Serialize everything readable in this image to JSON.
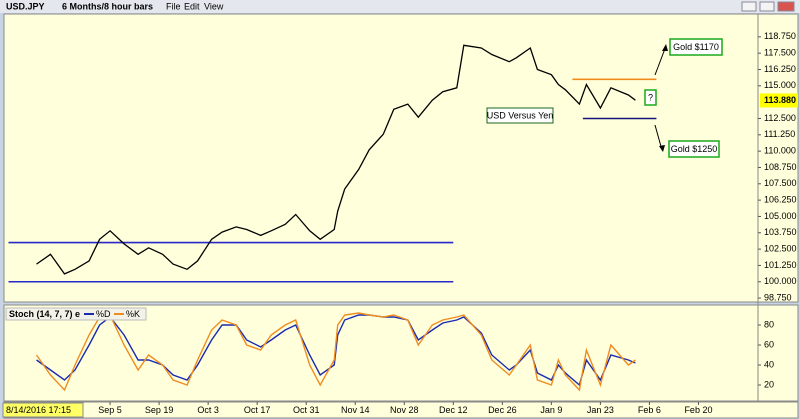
{
  "window": {
    "symbol": "USD.JPY",
    "period": "6 Months/8 hour bars",
    "menus": [
      "File",
      "Edit",
      "View"
    ],
    "cursor_date": "8/14/2016 17:15"
  },
  "chart_data": [
    {
      "type": "line",
      "x": [
        "2016-08-15",
        "2016-08-19",
        "2016-08-23",
        "2016-08-26",
        "2016-08-30",
        "2016-09-02",
        "2016-09-05",
        "2016-09-09",
        "2016-09-13",
        "2016-09-16",
        "2016-09-20",
        "2016-09-23",
        "2016-09-27",
        "2016-09-30",
        "2016-10-04",
        "2016-10-07",
        "2016-10-11",
        "2016-10-14",
        "2016-10-18",
        "2016-10-21",
        "2016-10-25",
        "2016-10-28",
        "2016-11-01",
        "2016-11-04",
        "2016-11-08",
        "2016-11-09",
        "2016-11-11",
        "2016-11-15",
        "2016-11-18",
        "2016-11-22",
        "2016-11-25",
        "2016-11-29",
        "2016-12-02",
        "2016-12-06",
        "2016-12-09",
        "2016-12-13",
        "2016-12-15",
        "2016-12-20",
        "2016-12-23",
        "2016-12-28",
        "2016-12-30",
        "2017-01-03",
        "2017-01-05",
        "2017-01-09",
        "2017-01-11",
        "2017-01-13",
        "2017-01-17",
        "2017-01-19",
        "2017-01-23",
        "2017-01-26",
        "2017-01-31",
        "2017-02-02"
      ],
      "series": [
        {
          "color": "#000000",
          "values": [
            101.35,
            102.1,
            100.6,
            100.95,
            101.6,
            103.25,
            103.9,
            102.9,
            102.1,
            102.6,
            102.1,
            101.35,
            100.95,
            101.6,
            103.25,
            103.8,
            104.2,
            104.0,
            103.55,
            103.9,
            104.4,
            105.15,
            103.9,
            103.25,
            104.0,
            105.4,
            107.1,
            108.6,
            110.1,
            111.3,
            113.2,
            113.6,
            112.6,
            113.9,
            114.55,
            114.85,
            118.1,
            117.9,
            117.4,
            116.85,
            117.15,
            117.9,
            116.25,
            115.85,
            115.1,
            114.7,
            113.6,
            115.1,
            113.3,
            114.85,
            114.3,
            113.9
          ]
        }
      ],
      "last": {
        "value": 113.88,
        "label": "113.880"
      },
      "lines": [
        {
          "value": 103.0,
          "x": [
            "2016-08-07",
            "2016-12-12"
          ],
          "color": "#2828c8"
        },
        {
          "value": 100.0,
          "x": [
            "2016-08-07",
            "2016-12-12"
          ],
          "color": "#2828c8"
        },
        {
          "value": 115.5,
          "x": [
            "2017-01-15",
            "2017-02-08"
          ],
          "color": "#f08c1e"
        },
        {
          "value": 112.5,
          "x": [
            "2017-01-18",
            "2017-02-08"
          ],
          "color": "#141478"
        }
      ],
      "annotations": [
        "USD Versus Yen",
        "?",
        "Gold $1170",
        "Gold $1250"
      ],
      "xlim": [
        "2016-08-06",
        "2017-03-09"
      ],
      "ylim": [
        98.45,
        120.5
      ],
      "yticks": [
        {
          "value": 98.75,
          "label": "98.750"
        },
        {
          "value": 100,
          "label": "100.000"
        },
        {
          "value": 101.25,
          "label": "101.250"
        },
        {
          "value": 102.5,
          "label": "102.500"
        },
        {
          "value": 103.75,
          "label": "103.750"
        },
        {
          "value": 105,
          "label": "105.000"
        },
        {
          "value": 106.25,
          "label": "106.250"
        },
        {
          "value": 107.5,
          "label": "107.500"
        },
        {
          "value": 108.75,
          "label": "108.750"
        },
        {
          "value": 110,
          "label": "110.000"
        },
        {
          "value": 111.25,
          "label": "111.250"
        },
        {
          "value": 112.5,
          "label": "112.500"
        },
        {
          "value": 115,
          "label": "115.000"
        },
        {
          "value": 116.25,
          "label": "116.250"
        },
        {
          "value": 117.5,
          "label": "117.500"
        },
        {
          "value": 118.75,
          "label": "118.750"
        }
      ]
    },
    {
      "type": "line",
      "title": "Stoch (14, 7, 7) e",
      "x": [
        "2016-08-15",
        "2016-08-19",
        "2016-08-23",
        "2016-08-26",
        "2016-08-30",
        "2016-09-02",
        "2016-09-05",
        "2016-09-09",
        "2016-09-13",
        "2016-09-16",
        "2016-09-20",
        "2016-09-23",
        "2016-09-27",
        "2016-09-30",
        "2016-10-04",
        "2016-10-07",
        "2016-10-11",
        "2016-10-14",
        "2016-10-18",
        "2016-10-21",
        "2016-10-25",
        "2016-10-28",
        "2016-11-01",
        "2016-11-04",
        "2016-11-08",
        "2016-11-09",
        "2016-11-11",
        "2016-11-15",
        "2016-11-18",
        "2016-11-22",
        "2016-11-25",
        "2016-11-29",
        "2016-12-02",
        "2016-12-06",
        "2016-12-09",
        "2016-12-13",
        "2016-12-15",
        "2016-12-20",
        "2016-12-23",
        "2016-12-28",
        "2016-12-30",
        "2017-01-03",
        "2017-01-05",
        "2017-01-09",
        "2017-01-11",
        "2017-01-13",
        "2017-01-17",
        "2017-01-19",
        "2017-01-23",
        "2017-01-26",
        "2017-01-31",
        "2017-02-02"
      ],
      "series": [
        {
          "name": "%D",
          "color": "#1a2bb0",
          "values": [
            45,
            35,
            25,
            35,
            60,
            80,
            88,
            70,
            45,
            45,
            40,
            30,
            25,
            40,
            65,
            80,
            80,
            65,
            58,
            65,
            75,
            80,
            50,
            30,
            40,
            70,
            85,
            90,
            90,
            88,
            88,
            85,
            65,
            75,
            82,
            85,
            88,
            72,
            50,
            35,
            40,
            55,
            32,
            25,
            40,
            32,
            20,
            45,
            25,
            50,
            45,
            42
          ]
        },
        {
          "name": "%K",
          "color": "#f08c1e",
          "values": [
            50,
            30,
            15,
            40,
            70,
            88,
            90,
            60,
            35,
            50,
            40,
            25,
            20,
            45,
            75,
            85,
            80,
            60,
            55,
            70,
            80,
            85,
            40,
            20,
            45,
            80,
            90,
            92,
            90,
            88,
            90,
            85,
            60,
            80,
            85,
            88,
            90,
            70,
            45,
            30,
            40,
            60,
            25,
            20,
            45,
            30,
            15,
            55,
            20,
            60,
            40,
            45
          ]
        }
      ],
      "xlim": [
        "2016-08-06",
        "2017-03-09"
      ],
      "ylim": [
        4,
        100
      ],
      "yticks": [
        20,
        40,
        60,
        80
      ],
      "xticks": [
        {
          "value": "2016-09-05",
          "label": "Sep 5"
        },
        {
          "value": "2016-09-19",
          "label": "Sep 19"
        },
        {
          "value": "2016-10-03",
          "label": "Oct 3"
        },
        {
          "value": "2016-10-17",
          "label": "Oct 17"
        },
        {
          "value": "2016-10-31",
          "label": "Oct 31"
        },
        {
          "value": "2016-11-14",
          "label": "Nov 14"
        },
        {
          "value": "2016-11-28",
          "label": "Nov 28"
        },
        {
          "value": "2016-12-12",
          "label": "Dec 12"
        },
        {
          "value": "2016-12-26",
          "label": "Dec 26"
        },
        {
          "value": "2017-01-09",
          "label": "Jan 9"
        },
        {
          "value": "2017-01-23",
          "label": "Jan 23"
        },
        {
          "value": "2017-02-06",
          "label": "Feb 6"
        },
        {
          "value": "2017-02-20",
          "label": "Feb 20"
        }
      ]
    }
  ]
}
